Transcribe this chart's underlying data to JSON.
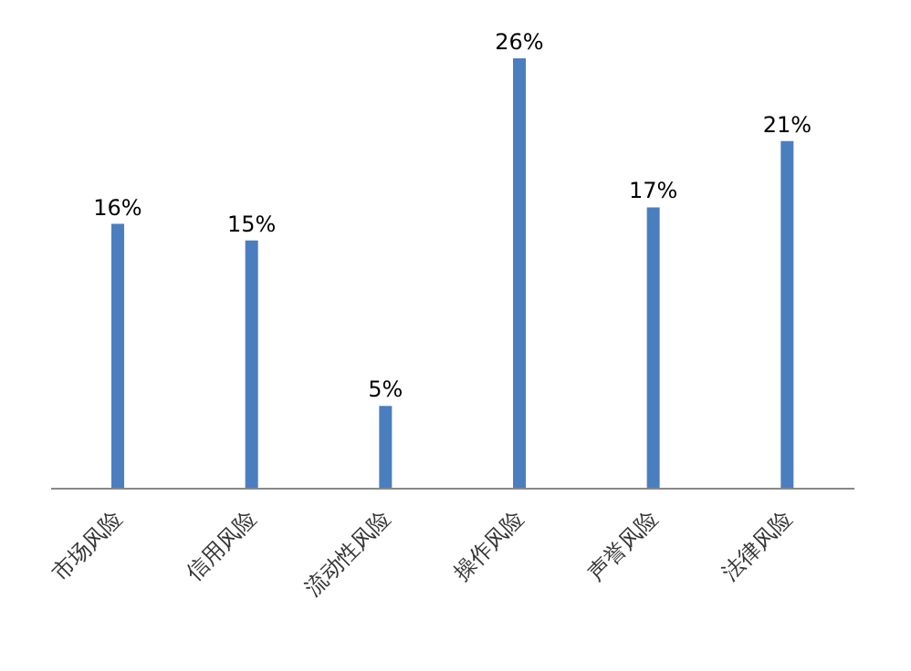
{
  "chart_data": {
    "type": "bar",
    "categories": [
      "市场风险",
      "信用风险",
      "流动性风险",
      "操作风险",
      "声誉风险",
      "法律风险"
    ],
    "values": [
      16,
      15,
      5,
      26,
      17,
      21
    ],
    "value_labels": [
      "16%",
      "15%",
      "5%",
      "26%",
      "17%",
      "21%"
    ],
    "color": "#4a7ebf",
    "grid": false,
    "legend": false
  }
}
